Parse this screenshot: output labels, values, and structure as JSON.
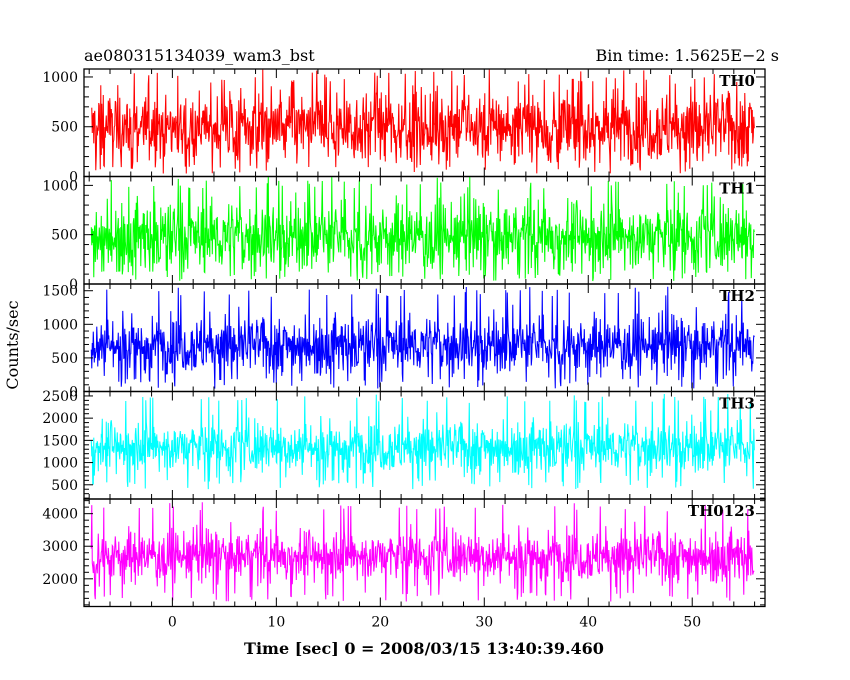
{
  "chart_data": {
    "type": "line",
    "title": "ae080315134039_wam3_bst",
    "subtitle": "Bin time: 1.5625E−2 s",
    "xlabel": "Time [sec] 0 = 2008/03/15 13:40:39.460",
    "ylabel": "Counts/sec",
    "xlim": [
      -8.5,
      57
    ],
    "x_ticks": [
      0,
      10,
      20,
      30,
      40,
      50
    ],
    "x_tick_labels": [
      "0",
      "10",
      "20",
      "30",
      "40",
      "50"
    ],
    "x_data_range": [
      -7.8,
      56.0
    ],
    "grid": false,
    "panels": [
      {
        "name": "TH0",
        "color": "#ff0000",
        "ylim": [
          0,
          1080
        ],
        "y_ticks": [
          0,
          500,
          1000
        ],
        "y_tick_labels": [
          "0",
          "500",
          "1000"
        ],
        "value_range": [
          30,
          1080
        ],
        "typical_center": 500,
        "typical_spread": 330
      },
      {
        "name": "TH1",
        "color": "#00ff00",
        "ylim": [
          0,
          1090
        ],
        "y_ticks": [
          0,
          500,
          1000
        ],
        "y_tick_labels": [
          "0",
          "500",
          "1000"
        ],
        "value_range": [
          30,
          1090
        ],
        "typical_center": 480,
        "typical_spread": 320
      },
      {
        "name": "TH2",
        "color": "#0000ff",
        "ylim": [
          0,
          1600
        ],
        "y_ticks": [
          0,
          500,
          1000,
          1500
        ],
        "y_tick_labels": [
          "0",
          "500",
          "1000",
          "1500"
        ],
        "value_range": [
          40,
          1560
        ],
        "typical_center": 690,
        "typical_spread": 380
      },
      {
        "name": "TH3",
        "color": "#00ffff",
        "ylim": [
          180,
          2600
        ],
        "y_ticks": [
          500,
          1000,
          1500,
          2000,
          2500
        ],
        "y_tick_labels": [
          "500",
          "1000",
          "1500",
          "2000",
          "2500"
        ],
        "value_range": [
          400,
          2550
        ],
        "typical_center": 1350,
        "typical_spread": 520
      },
      {
        "name": "TH0123",
        "color": "#ff00ff",
        "ylim": [
          1150,
          4450
        ],
        "y_ticks": [
          2000,
          3000,
          4000
        ],
        "y_tick_labels": [
          "2000",
          "3000",
          "4000"
        ],
        "value_range": [
          1300,
          4350
        ],
        "typical_center": 2700,
        "typical_spread": 700
      }
    ]
  }
}
